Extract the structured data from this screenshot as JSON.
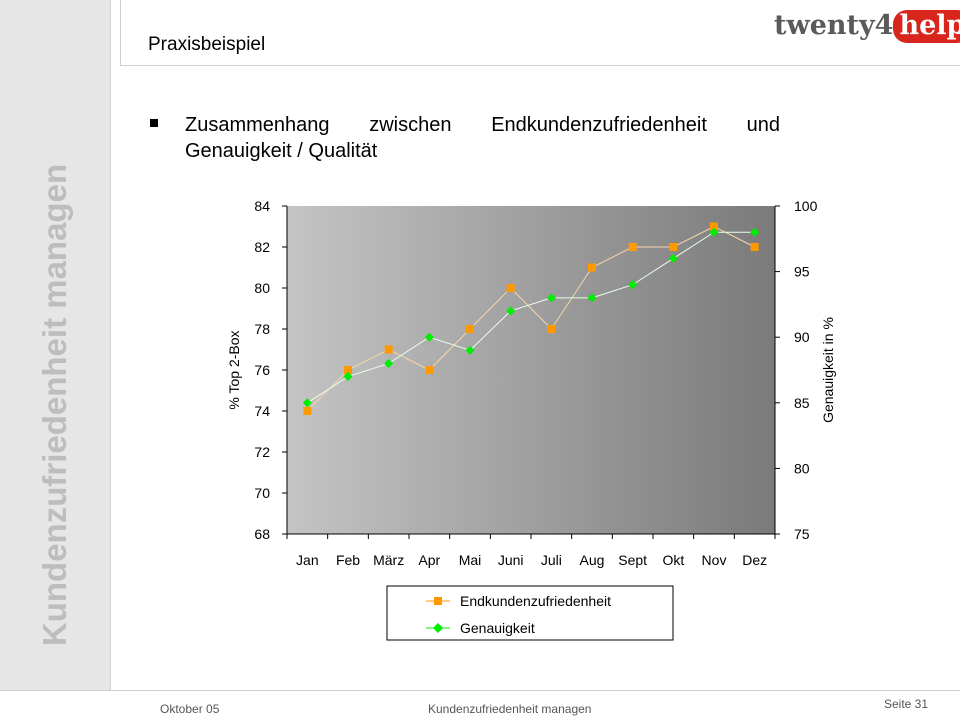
{
  "sidebar": {
    "title": "Kundenzufriedenheit managen"
  },
  "header": {
    "section": "Praxisbeispiel",
    "logo_text": "twenty4",
    "logo_highlight": "help"
  },
  "main": {
    "heading": "Zusammenhang zwischen Endkundenzufriedenheit und Genauigkeit / Qualität"
  },
  "chart_data": {
    "type": "line",
    "categories": [
      "Jan",
      "Feb",
      "März",
      "Apr",
      "Mai",
      "Juni",
      "Juli",
      "Aug",
      "Sept",
      "Okt",
      "Nov",
      "Dez"
    ],
    "ylabel": "% Top 2-Box",
    "y2label": "Genauigkeit in %",
    "ylim": [
      68,
      84
    ],
    "yticks": [
      68,
      70,
      72,
      74,
      76,
      78,
      80,
      82,
      84
    ],
    "y2lim": [
      75,
      100
    ],
    "y2ticks": [
      75,
      80,
      85,
      90,
      95,
      100
    ],
    "grid": false,
    "legend_position": "bottom",
    "series": [
      {
        "name": "Endkundenzufriedenheit",
        "axis": "left",
        "color": "#ff9900",
        "marker": "square",
        "values": [
          74,
          76,
          77,
          76,
          78,
          80,
          78,
          81,
          82,
          82,
          83,
          82
        ]
      },
      {
        "name": "Genauigkeit",
        "axis": "right",
        "color": "#00ee00",
        "marker": "diamond",
        "values": [
          85,
          87,
          88,
          90,
          89,
          92,
          93,
          93,
          94,
          96,
          98,
          98
        ]
      }
    ]
  },
  "footer": {
    "date": "Oktober 05",
    "title": "Kundenzufriedenheit managen",
    "page": "Seite 31"
  }
}
